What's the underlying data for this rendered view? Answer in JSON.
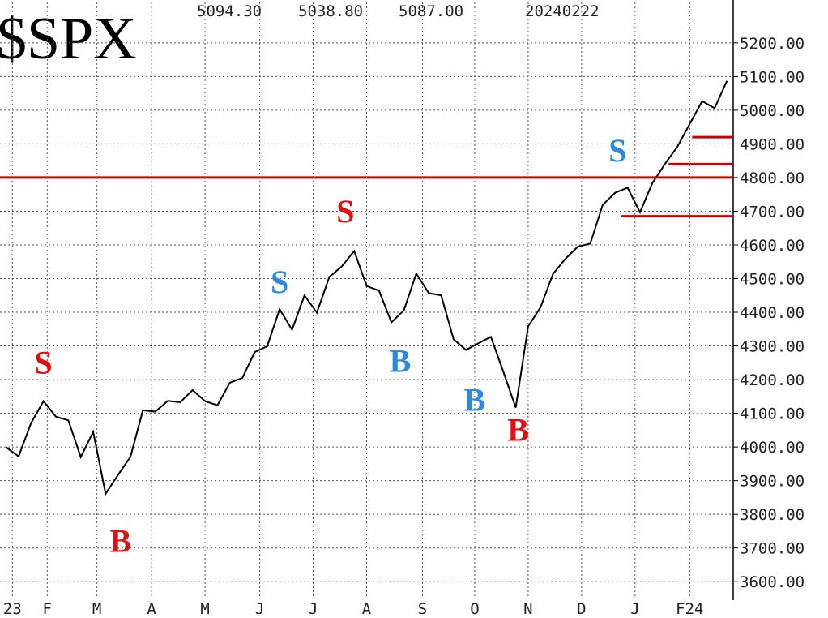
{
  "chart_data": {
    "type": "line",
    "title": "$SPX",
    "header": [
      "5094.30",
      "5038.80",
      "5087.00",
      "20240222"
    ],
    "xlim": [
      -0.5,
      58.5
    ],
    "xticks": [
      {
        "value": 0.5,
        "label": "23"
      },
      {
        "value": 3.3,
        "label": "F"
      },
      {
        "value": 7.3,
        "label": "M"
      },
      {
        "value": 11.7,
        "label": "A"
      },
      {
        "value": 16,
        "label": "M"
      },
      {
        "value": 20.4,
        "label": "J"
      },
      {
        "value": 24.7,
        "label": "J"
      },
      {
        "value": 29,
        "label": "A"
      },
      {
        "value": 33.5,
        "label": "S"
      },
      {
        "value": 37.7,
        "label": "O"
      },
      {
        "value": 42,
        "label": "N"
      },
      {
        "value": 46.3,
        "label": "D"
      },
      {
        "value": 50.6,
        "label": "J"
      },
      {
        "value": 55,
        "label": "F24"
      }
    ],
    "ylim": [
      3550,
      5320
    ],
    "yticks": [
      {
        "value": 3600,
        "label": "3600.00"
      },
      {
        "value": 3700,
        "label": "3700.00"
      },
      {
        "value": 3800,
        "label": "3800.00"
      },
      {
        "value": 3900,
        "label": "3900.00"
      },
      {
        "value": 4000,
        "label": "4000.00"
      },
      {
        "value": 4100,
        "label": "4100.00"
      },
      {
        "value": 4200,
        "label": "4200.00"
      },
      {
        "value": 4300,
        "label": "4300.00"
      },
      {
        "value": 4400,
        "label": "4400.00"
      },
      {
        "value": 4500,
        "label": "4500.00"
      },
      {
        "value": 4600,
        "label": "4600.00"
      },
      {
        "value": 4700,
        "label": "4700.00"
      },
      {
        "value": 4800,
        "label": "4800.00"
      },
      {
        "value": 4900,
        "label": "4900.00"
      },
      {
        "value": 5000,
        "label": "5000.00"
      },
      {
        "value": 5100,
        "label": "5100.00"
      },
      {
        "value": 5200,
        "label": "5200.00"
      }
    ],
    "grid": true,
    "series": [
      {
        "color": "#000000",
        "values": [
          3999,
          3972,
          4071,
          4136,
          4090,
          4079,
          3970,
          4045,
          3861,
          3917,
          3971,
          4109,
          4105,
          4137,
          4133,
          4169,
          4136,
          4124,
          4191,
          4205,
          4282,
          4299,
          4409,
          4348,
          4450,
          4399,
          4505,
          4536,
          4582,
          4478,
          4464,
          4370,
          4406,
          4515,
          4457,
          4450,
          4320,
          4288,
          4308,
          4327,
          4224,
          4117,
          4358,
          4415,
          4514,
          4559,
          4595,
          4604,
          4719,
          4755,
          4770,
          4697,
          4784,
          4840,
          4891,
          4959,
          5027,
          5006,
          5087
        ]
      }
    ],
    "levels": [
      {
        "value": 4800,
        "from": -0.5,
        "color": "#cc0000"
      },
      {
        "value": 4920,
        "from": 55.2,
        "color": "#cc0000"
      },
      {
        "value": 4840,
        "from": 53.3,
        "color": "#cc0000"
      },
      {
        "value": 4685,
        "from": 49.5,
        "color": "#cc0000"
      }
    ],
    "annotations": [
      {
        "text": "S",
        "x": 3,
        "y": 4240,
        "color": "#e01010"
      },
      {
        "text": "B",
        "x": 9.2,
        "y": 3710,
        "color": "#e01010"
      },
      {
        "text": "S",
        "x": 22,
        "y": 4480,
        "color": "#2a8ae0"
      },
      {
        "text": "S",
        "x": 27.3,
        "y": 4690,
        "color": "#e01010"
      },
      {
        "text": "B",
        "x": 31.7,
        "y": 4245,
        "color": "#2a8ae0"
      },
      {
        "text": "B",
        "x": 37.7,
        "y": 4130,
        "color": "#2a8ae0"
      },
      {
        "text": "B",
        "x": 41.2,
        "y": 4040,
        "color": "#e01010"
      },
      {
        "text": "S",
        "x": 49.2,
        "y": 4870,
        "color": "#2a8ae0"
      }
    ]
  }
}
